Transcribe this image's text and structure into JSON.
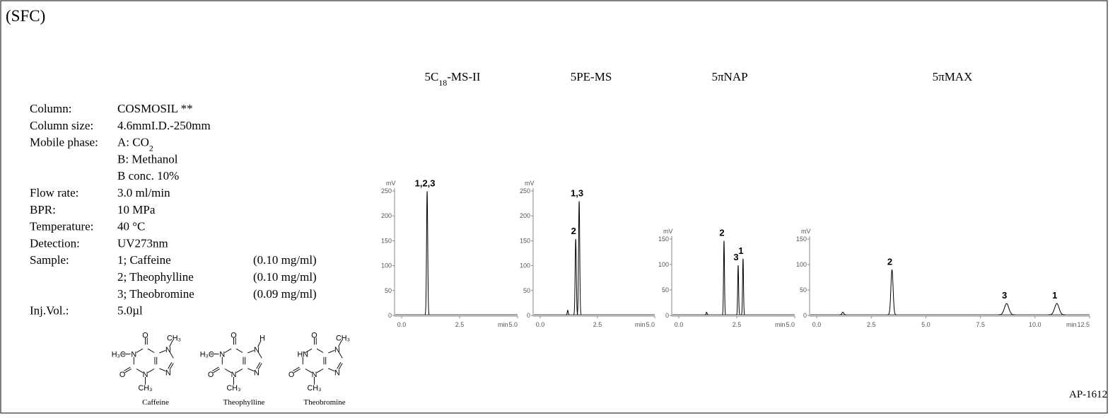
{
  "header": "(SFC)",
  "code": "AP-1612",
  "conditions": [
    {
      "label": "Column:",
      "lines": [
        "COSMOSIL  **"
      ]
    },
    {
      "label": "Column size:",
      "lines": [
        "4.6mmI.D.-250mm"
      ]
    },
    {
      "label": "Mobile phase:",
      "lines": [
        [
          {
            "text": "A: CO"
          },
          {
            "text": "2",
            "sub": true
          }
        ],
        "B: Methanol",
        "B conc. 10%"
      ]
    },
    {
      "label": "Flow rate:",
      "lines": [
        "3.0 ml/min"
      ]
    },
    {
      "label": "BPR:",
      "lines": [
        "10 MPa"
      ]
    },
    {
      "label": "Temperature:",
      "lines": [
        "40 °C"
      ]
    },
    {
      "label": "Detection:",
      "lines": [
        "UV273nm"
      ]
    },
    {
      "label": "Sample:",
      "lines": [
        "1; Caffeine",
        "2; Theophylline",
        "3; Theobromine"
      ],
      "notes": [
        "(0.10 mg/ml)",
        "(0.10 mg/ml)",
        "(0.09 mg/ml)"
      ]
    },
    {
      "label": "Inj.Vol.:",
      "lines": [
        "5.0µl"
      ]
    }
  ],
  "structures": [
    {
      "name": "Caffeine",
      "atoms": {
        "n1_sub": "H₃C",
        "n1": "N",
        "o6": "O",
        "o2": "O",
        "n3": "N",
        "n3_sub": "CH₃",
        "n7": "N",
        "n7_sub": "CH₃",
        "n9": "N"
      }
    },
    {
      "name": "Theophylline",
      "atoms": {
        "n1_sub": "H₃C",
        "n1": "N",
        "o6": "O",
        "o2": "O",
        "n3": "N",
        "n3_sub": "CH₃",
        "n7": "N",
        "n7_sub": "H",
        "n9": "N"
      }
    },
    {
      "name": "Theobromine",
      "atoms": {
        "n1": "HN",
        "o6": "O",
        "o2": "O",
        "n3": "N",
        "n3_sub": "CH₃",
        "n7": "N",
        "n7_sub": "CH₃",
        "n9": "N"
      }
    }
  ],
  "chart_data": [
    {
      "type": "chromatogram",
      "title": [
        {
          "text": "5C"
        },
        {
          "text": "18",
          "sub": true
        },
        {
          "text": "-MS-II"
        }
      ],
      "y_label": "mV",
      "x_label": "min",
      "color": "#000000",
      "xlim": [
        0,
        5
      ],
      "xticks": [
        {
          "value": 0,
          "label": "0.0"
        },
        {
          "value": 2.5,
          "label": "2.5"
        },
        {
          "value": 5,
          "label": "5.0"
        }
      ],
      "ylim": [
        0,
        250
      ],
      "yticks": [
        0,
        50,
        100,
        150,
        200,
        250
      ],
      "peaks": [
        {
          "label": "1,2,3",
          "time": 1.1,
          "height": 248,
          "width": 0.025
        }
      ]
    },
    {
      "type": "chromatogram",
      "title": [
        {
          "text": "5PE-MS"
        }
      ],
      "y_label": "mV",
      "x_label": "min",
      "color": "#000000",
      "xlim": [
        0,
        5
      ],
      "xticks": [
        {
          "value": 0,
          "label": "0.0"
        },
        {
          "value": 2.5,
          "label": "2.5"
        },
        {
          "value": 5,
          "label": "5.0"
        }
      ],
      "ylim": [
        0,
        250
      ],
      "yticks": [
        0,
        50,
        100,
        150,
        200,
        250
      ],
      "peaks": [
        {
          "time": 1.2,
          "height": 9,
          "width": 0.02
        },
        {
          "label": "2",
          "time": 1.55,
          "height": 152,
          "width": 0.025
        },
        {
          "label": "1,3",
          "time": 1.7,
          "height": 228,
          "width": 0.025
        }
      ]
    },
    {
      "type": "chromatogram",
      "title": [
        {
          "text": "5πNAP"
        }
      ],
      "y_label": "mV",
      "x_label": "min",
      "color": "#000000",
      "xlim": [
        0,
        5
      ],
      "xticks": [
        {
          "value": 0,
          "label": "0.0"
        },
        {
          "value": 2.5,
          "label": "2.5"
        },
        {
          "value": 5,
          "label": "5.0"
        }
      ],
      "ylim": [
        0,
        150
      ],
      "yticks": [
        0,
        50,
        100,
        150
      ],
      "peaks": [
        {
          "time": 1.2,
          "height": 5,
          "width": 0.02
        },
        {
          "label": "2",
          "time": 1.95,
          "height": 145,
          "width": 0.02
        },
        {
          "label": "3",
          "time": 2.56,
          "height": 97,
          "width": 0.02
        },
        {
          "label": "1",
          "time": 2.77,
          "height": 110,
          "width": 0.02
        }
      ]
    },
    {
      "type": "chromatogram",
      "title": [
        {
          "text": "5πMAX"
        }
      ],
      "y_label": "mV",
      "x_label": "min",
      "color": "#000000",
      "xlim": [
        0,
        12.5
      ],
      "xticks": [
        {
          "value": 0,
          "label": "0.0"
        },
        {
          "value": 2.5,
          "label": "2.5"
        },
        {
          "value": 5,
          "label": "5.0"
        },
        {
          "value": 7.5,
          "label": "7.5"
        },
        {
          "value": 10,
          "label": "10.0"
        },
        {
          "value": 12.5,
          "label": "12.5"
        }
      ],
      "ylim": [
        0,
        150
      ],
      "yticks": [
        0,
        50,
        100,
        150
      ],
      "peaks": [
        {
          "time": 1.2,
          "height": 5,
          "width": 0.04
        },
        {
          "label": "2",
          "time": 3.45,
          "height": 88,
          "width": 0.05
        },
        {
          "label": "3",
          "time": 8.7,
          "height": 22,
          "width": 0.1
        },
        {
          "label": "1",
          "time": 11.0,
          "height": 22,
          "width": 0.1
        }
      ]
    }
  ]
}
